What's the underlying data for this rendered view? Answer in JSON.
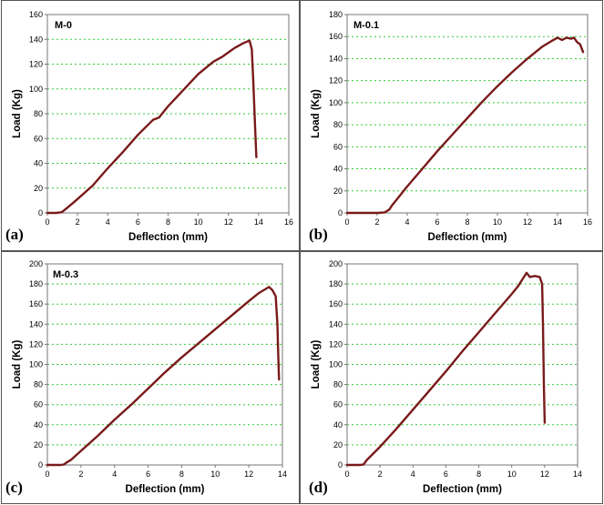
{
  "figure": {
    "line_color": "#7a1a1a",
    "grid_color": "#33cc33"
  },
  "chart_data": [
    {
      "type": "line",
      "panel_label": "(a)",
      "title": "M-0",
      "xlabel": "Deflection (mm)",
      "ylabel": "Load (Kg)",
      "xlim": [
        0,
        16
      ],
      "ylim": [
        0,
        160
      ],
      "xticks": [
        0,
        2,
        4,
        6,
        8,
        10,
        12,
        14,
        16
      ],
      "yticks": [
        0,
        20,
        40,
        60,
        80,
        100,
        120,
        140,
        160
      ],
      "grid": "horizontal dotted",
      "series": [
        {
          "x": [
            0,
            0.6,
            0.9,
            1.0,
            1.2,
            1.8,
            3,
            4,
            5,
            6,
            7,
            7.4,
            8,
            9,
            10,
            11,
            11.6,
            12.4,
            13.0,
            13.4,
            13.55,
            13.65,
            13.75,
            13.85
          ],
          "y": [
            0,
            0,
            0.5,
            1,
            3,
            9,
            22,
            36,
            49,
            63,
            75,
            77,
            86,
            99,
            112,
            122,
            126,
            133,
            137,
            139,
            132,
            105,
            75,
            45
          ]
        }
      ]
    },
    {
      "type": "line",
      "panel_label": "(b)",
      "title": "M-0.1",
      "xlabel": "Deflection (mm)",
      "ylabel": "Load (Kg)",
      "xlim": [
        0,
        16
      ],
      "ylim": [
        0,
        180
      ],
      "xticks": [
        0,
        2,
        4,
        6,
        8,
        10,
        12,
        14,
        16
      ],
      "yticks": [
        0,
        20,
        40,
        60,
        80,
        100,
        120,
        140,
        160,
        180
      ],
      "grid": "horizontal dotted",
      "series": [
        {
          "x": [
            0,
            2.0,
            2.5,
            2.8,
            3,
            4,
            5,
            6,
            7,
            8,
            9,
            10,
            11,
            12,
            13,
            13.6,
            14.0,
            14.3,
            14.6,
            14.9,
            15.1,
            15.3,
            15.5,
            15.7
          ],
          "y": [
            0,
            0,
            0.5,
            3,
            7,
            24,
            40,
            56,
            71,
            86,
            101,
            115,
            128,
            140,
            151,
            156,
            159,
            157,
            159,
            158,
            159,
            155,
            153,
            146
          ]
        }
      ]
    },
    {
      "type": "line",
      "panel_label": "(c)",
      "title": "M-0.3",
      "xlabel": "Deflection (mm)",
      "ylabel": "Load (Kg)",
      "xlim": [
        0,
        14
      ],
      "ylim": [
        0,
        200
      ],
      "xticks": [
        0,
        2,
        4,
        6,
        8,
        10,
        12,
        14
      ],
      "yticks": [
        0,
        20,
        40,
        60,
        80,
        100,
        120,
        140,
        160,
        180,
        200
      ],
      "grid": "horizontal dotted",
      "series": [
        {
          "x": [
            0,
            0.8,
            1.0,
            1.1,
            1.4,
            2,
            3,
            4,
            5,
            6,
            7,
            8,
            9,
            10,
            11,
            12,
            12.6,
            13.0,
            13.2,
            13.4,
            13.6,
            13.7,
            13.75,
            13.8
          ],
          "y": [
            0,
            0,
            0.5,
            2,
            5,
            14,
            29,
            45,
            60,
            76,
            92,
            107,
            121,
            135,
            149,
            163,
            171,
            175,
            177,
            174,
            168,
            140,
            110,
            85
          ]
        }
      ]
    },
    {
      "type": "line",
      "panel_label": "(d)",
      "title": "",
      "xlabel": "Deflection (mm)",
      "ylabel": "Load (Kg)",
      "xlim": [
        0,
        14
      ],
      "ylim": [
        0,
        200
      ],
      "xticks": [
        0,
        2,
        4,
        6,
        8,
        10,
        12,
        14
      ],
      "yticks": [
        0,
        20,
        40,
        60,
        80,
        100,
        120,
        140,
        160,
        180,
        200
      ],
      "grid": "horizontal dotted",
      "series": [
        {
          "x": [
            0,
            0.8,
            1.0,
            1.2,
            2,
            3,
            4,
            5,
            6,
            7,
            8,
            9,
            10,
            10.4,
            10.7,
            10.9,
            11.1,
            11.4,
            11.7,
            11.85,
            11.9,
            11.95,
            12.0
          ],
          "y": [
            0,
            0,
            0.5,
            5,
            18,
            36,
            55,
            74,
            93,
            113,
            132,
            151,
            170,
            178,
            186,
            191,
            187,
            188,
            187,
            180,
            140,
            80,
            42
          ]
        }
      ]
    }
  ]
}
